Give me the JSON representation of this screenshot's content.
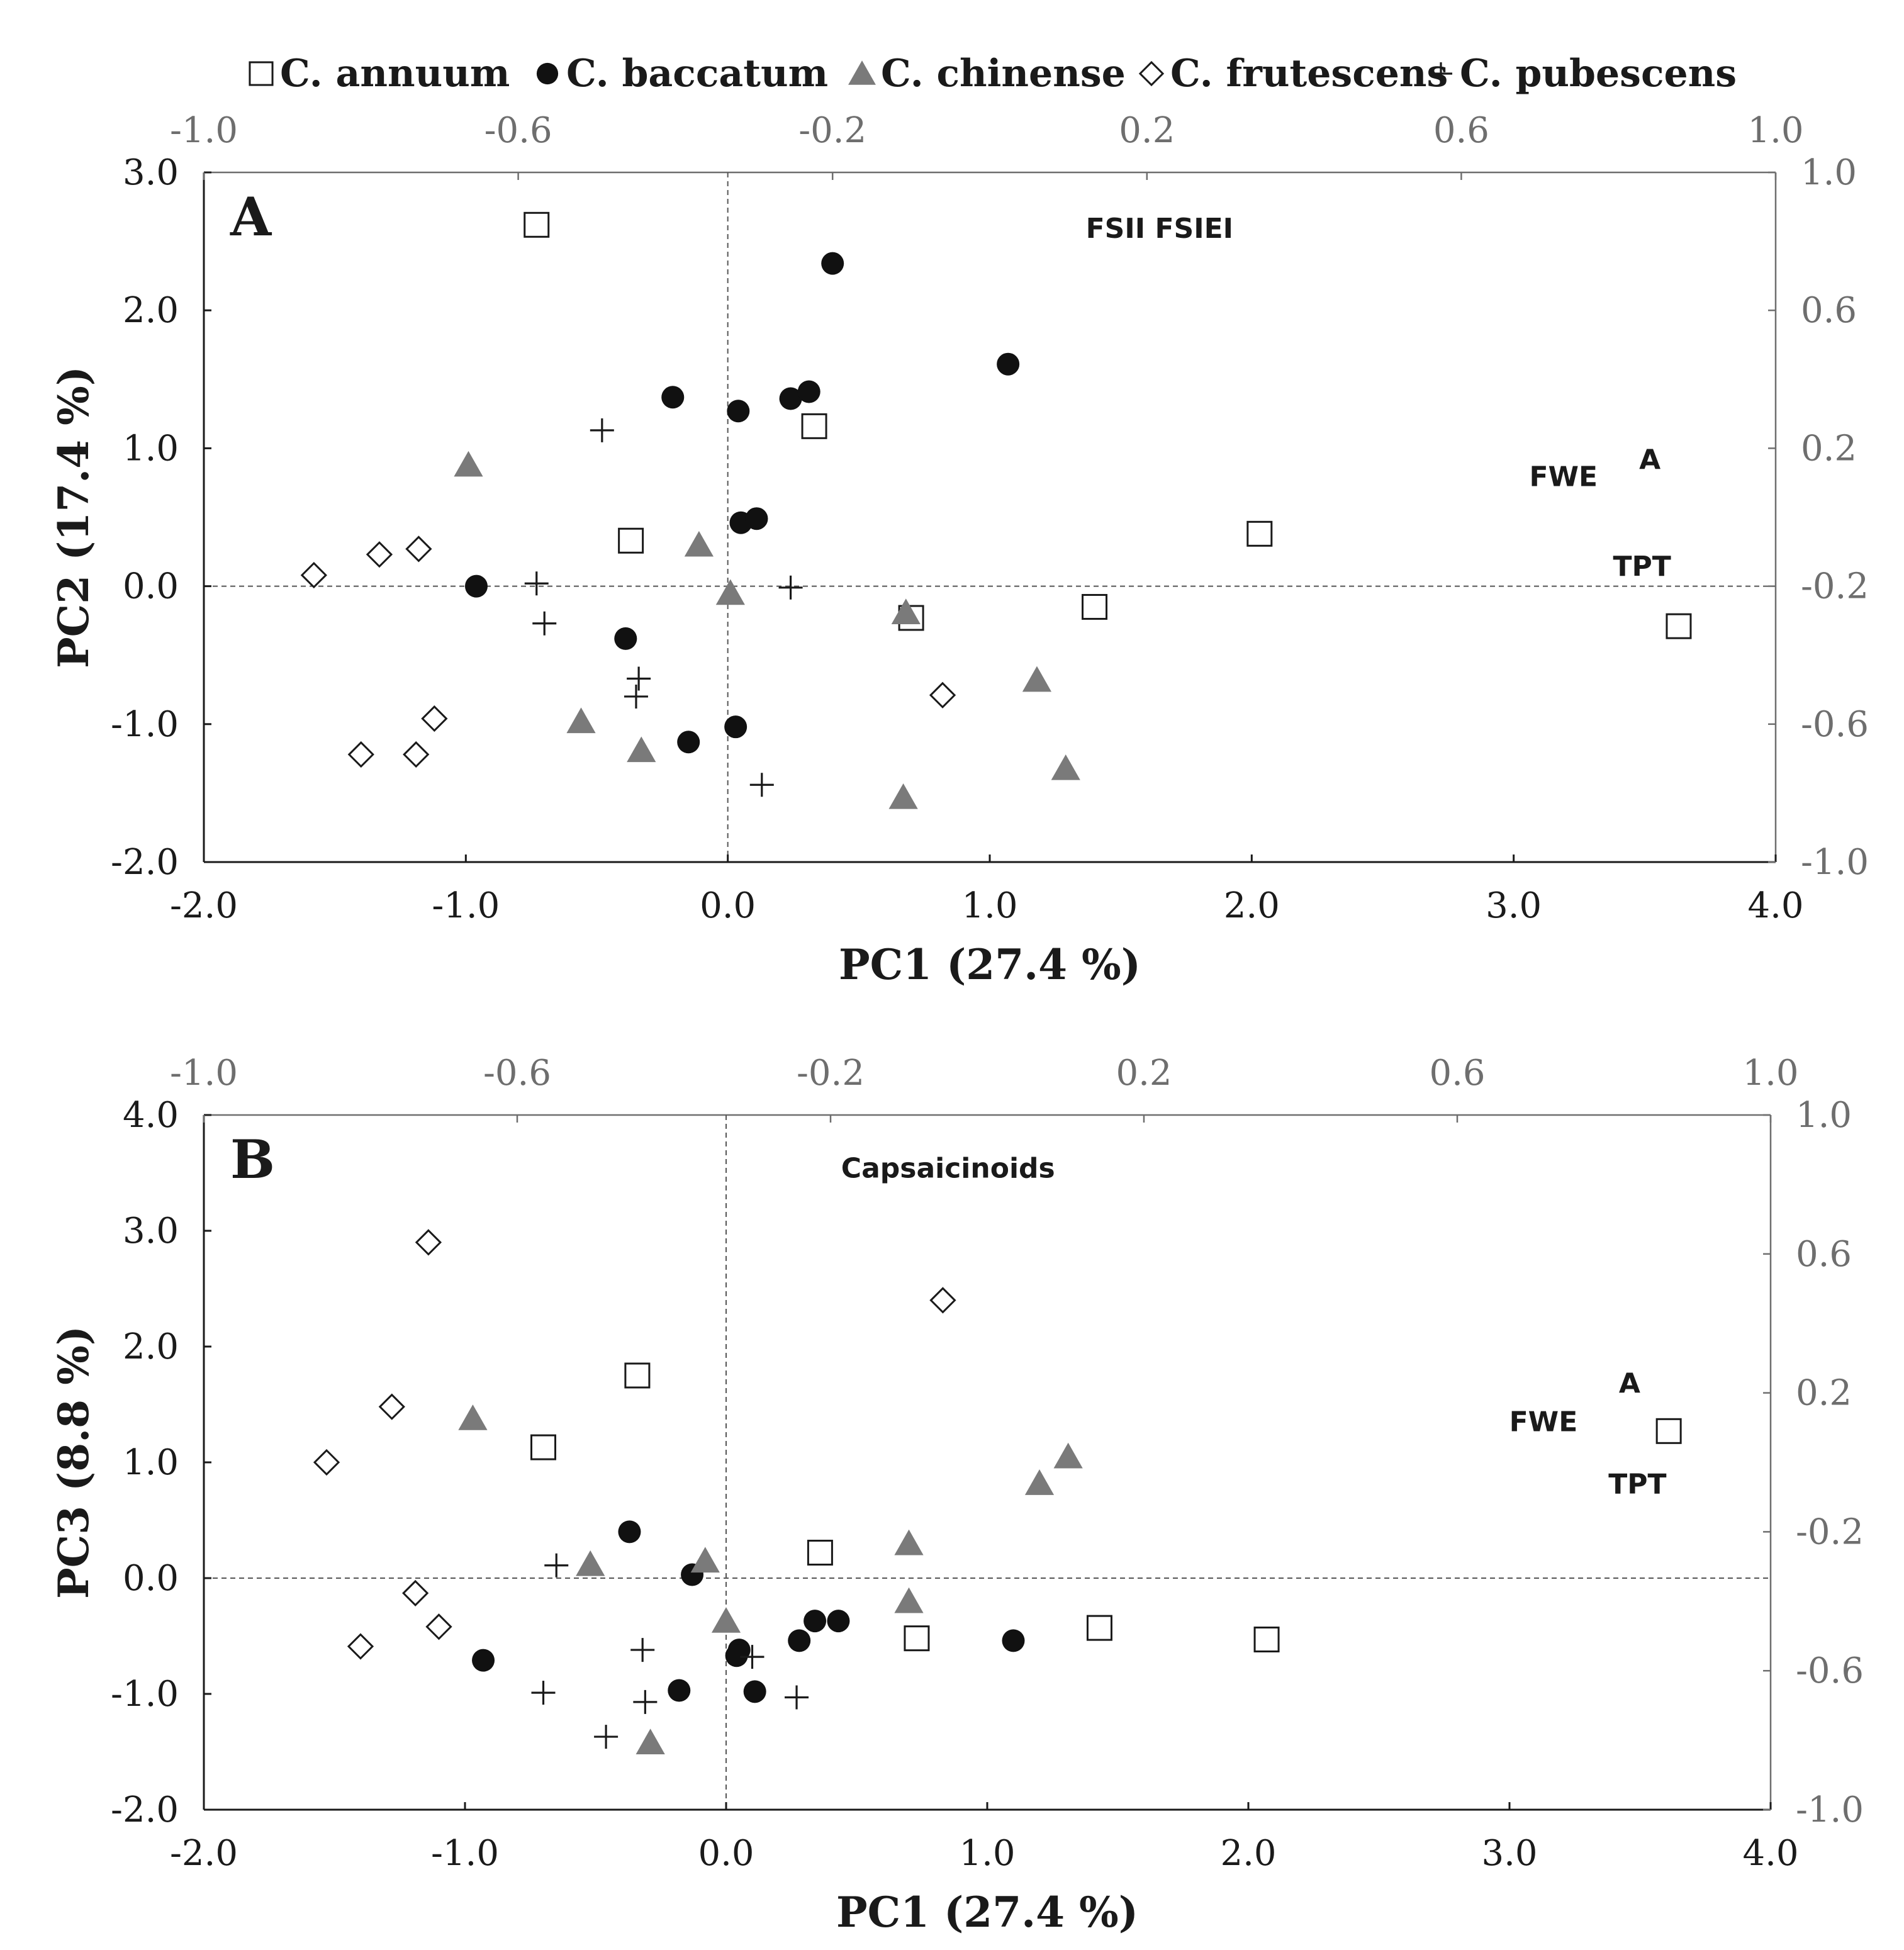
{
  "legend": [
    {
      "symbol": "square",
      "label": "C. annuum"
    },
    {
      "symbol": "circle",
      "label": "C. baccatum"
    },
    {
      "symbol": "triangle",
      "label": "C. chinense"
    },
    {
      "symbol": "diamond",
      "label": "C. frutescens"
    },
    {
      "symbol": "plus",
      "label": "C. pubescens"
    }
  ],
  "colors": {
    "axis": "#1a1a1a",
    "secondary_axis": "#6e6e6e",
    "triangle": "#7a7a7a",
    "circle": "#111111"
  },
  "chart_data": [
    {
      "type": "scatter",
      "panel_label": "A",
      "xlabel": "PC1 (27.4 %)",
      "ylabel": "PC2 (17.4 %)",
      "xlim": [
        -2.0,
        4.0
      ],
      "ylim": [
        -2.0,
        3.0
      ],
      "x_ticks": [
        "-2.0",
        "-1.0",
        "0.0",
        "1.0",
        "2.0",
        "3.0",
        "4.0"
      ],
      "y_ticks": [
        "-2.0",
        "-1.0",
        "0.0",
        "1.0",
        "2.0",
        "3.0"
      ],
      "top_axis": {
        "range": [
          -1.0,
          1.0
        ],
        "ticks": [
          "-1.0",
          "-0.6",
          "-0.2",
          "0.2",
          "0.6",
          "1.0"
        ]
      },
      "right_axis": {
        "range": [
          -1.0,
          1.0
        ],
        "ticks": [
          "-1.0",
          "-0.6",
          "-0.2",
          "0.2",
          "0.6",
          "1.0"
        ]
      },
      "loadings": [
        {
          "label": "FSII",
          "x": 0.16,
          "y": 0.81
        },
        {
          "label": "FSIEI",
          "x": 0.26,
          "y": 0.81
        },
        {
          "label": "FWE",
          "x": 0.73,
          "y": 0.09
        },
        {
          "label": "A",
          "x": 0.84,
          "y": 0.14
        },
        {
          "label": "TPT",
          "x": 0.83,
          "y": -0.17
        }
      ],
      "series": [
        {
          "name": "C. annuum",
          "points": [
            [
              -0.73,
              2.62
            ],
            [
              0.33,
              1.16
            ],
            [
              -0.37,
              0.33
            ],
            [
              0.7,
              -0.23
            ],
            [
              2.03,
              0.38
            ],
            [
              1.4,
              -0.15
            ],
            [
              3.63,
              -0.29
            ]
          ]
        },
        {
          "name": "C. baccatum",
          "points": [
            [
              0.4,
              2.34
            ],
            [
              1.07,
              1.61
            ],
            [
              -0.21,
              1.37
            ],
            [
              0.04,
              1.27
            ],
            [
              0.24,
              1.36
            ],
            [
              0.31,
              1.41
            ],
            [
              0.05,
              0.46
            ],
            [
              0.11,
              0.49
            ],
            [
              -0.96,
              0.0
            ],
            [
              -0.39,
              -0.38
            ],
            [
              0.03,
              -1.02
            ],
            [
              -0.15,
              -1.13
            ]
          ]
        },
        {
          "name": "C. chinense",
          "points": [
            [
              -0.99,
              0.88
            ],
            [
              -0.11,
              0.3
            ],
            [
              0.01,
              -0.05
            ],
            [
              0.68,
              -0.19
            ],
            [
              1.18,
              -0.68
            ],
            [
              -0.56,
              -0.98
            ],
            [
              -0.33,
              -1.19
            ],
            [
              1.29,
              -1.32
            ],
            [
              0.67,
              -1.53
            ]
          ]
        },
        {
          "name": "C. frutescens",
          "points": [
            [
              -1.58,
              0.08
            ],
            [
              -1.33,
              0.23
            ],
            [
              -1.18,
              0.27
            ],
            [
              -1.12,
              -0.96
            ],
            [
              -1.4,
              -1.22
            ],
            [
              -1.19,
              -1.22
            ],
            [
              0.82,
              -0.79
            ]
          ]
        },
        {
          "name": "C. pubescens",
          "points": [
            [
              -0.48,
              1.13
            ],
            [
              -0.73,
              0.02
            ],
            [
              -0.7,
              -0.27
            ],
            [
              0.24,
              -0.01
            ],
            [
              -0.34,
              -0.67
            ],
            [
              -0.35,
              -0.8
            ],
            [
              0.13,
              -1.44
            ]
          ]
        }
      ]
    },
    {
      "type": "scatter",
      "panel_label": "B",
      "xlabel": "PC1 (27.4 %)",
      "ylabel": "PC3 (8.8 %)",
      "xlim": [
        -2.0,
        4.0
      ],
      "ylim": [
        -2.0,
        4.0
      ],
      "x_ticks": [
        "-2.0",
        "-1.0",
        "0.0",
        "1.0",
        "2.0",
        "3.0",
        "4.0"
      ],
      "y_ticks": [
        "-2.0",
        "-1.0",
        "0.0",
        "1.0",
        "2.0",
        "3.0",
        "4.0"
      ],
      "top_axis": {
        "range": [
          -1.0,
          1.0
        ],
        "ticks": [
          "-1.0",
          "-0.6",
          "-0.2",
          "0.2",
          "0.6",
          "1.0"
        ]
      },
      "right_axis": {
        "range": [
          -1.0,
          1.0
        ],
        "ticks": [
          "-1.0",
          "-0.6",
          "-0.2",
          "0.2",
          "0.6",
          "1.0"
        ]
      },
      "loadings": [
        {
          "label": "Capsaicinoids",
          "x": -0.05,
          "y": 0.82
        },
        {
          "label": "FWE",
          "x": 0.71,
          "y": 0.09
        },
        {
          "label": "A",
          "x": 0.82,
          "y": 0.2
        },
        {
          "label": "TPT",
          "x": 0.83,
          "y": -0.09
        }
      ],
      "series": [
        {
          "name": "C. annuum",
          "points": [
            [
              -0.34,
              1.75
            ],
            [
              -0.7,
              1.13
            ],
            [
              0.36,
              0.22
            ],
            [
              0.73,
              -0.52
            ],
            [
              1.43,
              -0.43
            ],
            [
              2.07,
              -0.53
            ],
            [
              3.61,
              1.27
            ]
          ]
        },
        {
          "name": "C. baccatum",
          "points": [
            [
              -0.37,
              0.4
            ],
            [
              -0.13,
              0.03
            ],
            [
              0.34,
              -0.37
            ],
            [
              0.43,
              -0.37
            ],
            [
              0.28,
              -0.54
            ],
            [
              0.05,
              -0.62
            ],
            [
              0.04,
              -0.67
            ],
            [
              1.1,
              -0.54
            ],
            [
              -0.93,
              -0.71
            ],
            [
              -0.18,
              -0.97
            ],
            [
              0.11,
              -0.98
            ]
          ]
        },
        {
          "name": "C. chinense",
          "points": [
            [
              -0.97,
              1.38
            ],
            [
              -0.52,
              0.12
            ],
            [
              -0.08,
              0.15
            ],
            [
              0.0,
              -0.37
            ],
            [
              0.7,
              0.3
            ],
            [
              0.7,
              -0.2
            ],
            [
              1.2,
              0.82
            ],
            [
              1.31,
              1.05
            ],
            [
              -0.29,
              -1.42
            ]
          ]
        },
        {
          "name": "C. frutescens",
          "points": [
            [
              -1.14,
              2.9
            ],
            [
              -1.28,
              1.48
            ],
            [
              -1.53,
              1.0
            ],
            [
              -1.19,
              -0.13
            ],
            [
              -1.1,
              -0.42
            ],
            [
              -1.4,
              -0.59
            ],
            [
              0.83,
              2.4
            ]
          ]
        },
        {
          "name": "C. pubescens",
          "points": [
            [
              -0.65,
              0.11
            ],
            [
              -0.32,
              -0.62
            ],
            [
              0.1,
              -0.68
            ],
            [
              -0.7,
              -0.99
            ],
            [
              -0.31,
              -1.07
            ],
            [
              0.27,
              -1.03
            ],
            [
              -0.46,
              -1.37
            ]
          ]
        }
      ]
    }
  ]
}
